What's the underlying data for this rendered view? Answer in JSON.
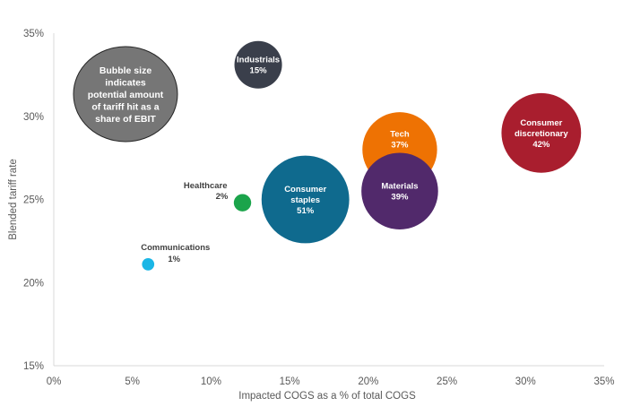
{
  "chart_data": {
    "type": "scatter",
    "subtype": "bubble",
    "title": "",
    "xlabel": "Impacted COGS as a % of total COGS",
    "ylabel": "Blended tariff rate",
    "xlim": [
      0,
      35
    ],
    "ylim": [
      15,
      35
    ],
    "x_ticks": [
      "0%",
      "5%",
      "10%",
      "15%",
      "20%",
      "25%",
      "30%",
      "35%"
    ],
    "y_ticks": [
      "15%",
      "20%",
      "25%",
      "30%",
      "35%"
    ],
    "x_tick_values": [
      0,
      5,
      10,
      15,
      20,
      25,
      30,
      35
    ],
    "y_tick_values": [
      15,
      20,
      25,
      30,
      35
    ],
    "grid": false,
    "size_legend": {
      "text_lines": [
        "Bubble size",
        "indicates",
        "potential amount",
        "of tariff hit as a",
        "share of EBIT"
      ],
      "color": "#767676",
      "placement": "top-left"
    },
    "series": [
      {
        "name": "Industrials",
        "label_lines": [
          "Industrials"
        ],
        "value_label": "15%",
        "x": 13,
        "y": 33.1,
        "size": 15,
        "color": "#3a3f4b",
        "label_position": "inside"
      },
      {
        "name": "Tech",
        "label_lines": [
          "Tech"
        ],
        "value_label": "37%",
        "x": 22,
        "y": 28.0,
        "size": 37,
        "color": "#ee7203",
        "label_position": "inside-top"
      },
      {
        "name": "Materials",
        "label_lines": [
          "Materials"
        ],
        "value_label": "39%",
        "x": 22,
        "y": 25.5,
        "size": 39,
        "color": "#51296b",
        "label_position": "inside"
      },
      {
        "name": "Consumer discretionary",
        "label_lines": [
          "Consumer",
          "discretionary"
        ],
        "value_label": "42%",
        "x": 31,
        "y": 29.0,
        "size": 42,
        "color": "#a91e2e",
        "label_position": "inside"
      },
      {
        "name": "Consumer staples",
        "label_lines": [
          "Consumer",
          "staples"
        ],
        "value_label": "51%",
        "x": 16,
        "y": 25.0,
        "size": 51,
        "color": "#0f6a8e",
        "label_position": "inside"
      },
      {
        "name": "Healthcare",
        "label_lines": [
          "Healthcare"
        ],
        "value_label": "2%",
        "x": 12,
        "y": 24.8,
        "size": 2,
        "color": "#1ba44b",
        "label_position": "outside-left"
      },
      {
        "name": "Communications",
        "label_lines": [
          "Communications"
        ],
        "value_label": "1%",
        "x": 6,
        "y": 21.1,
        "size": 1,
        "color": "#1ab6e6",
        "label_position": "outside-top"
      }
    ]
  }
}
